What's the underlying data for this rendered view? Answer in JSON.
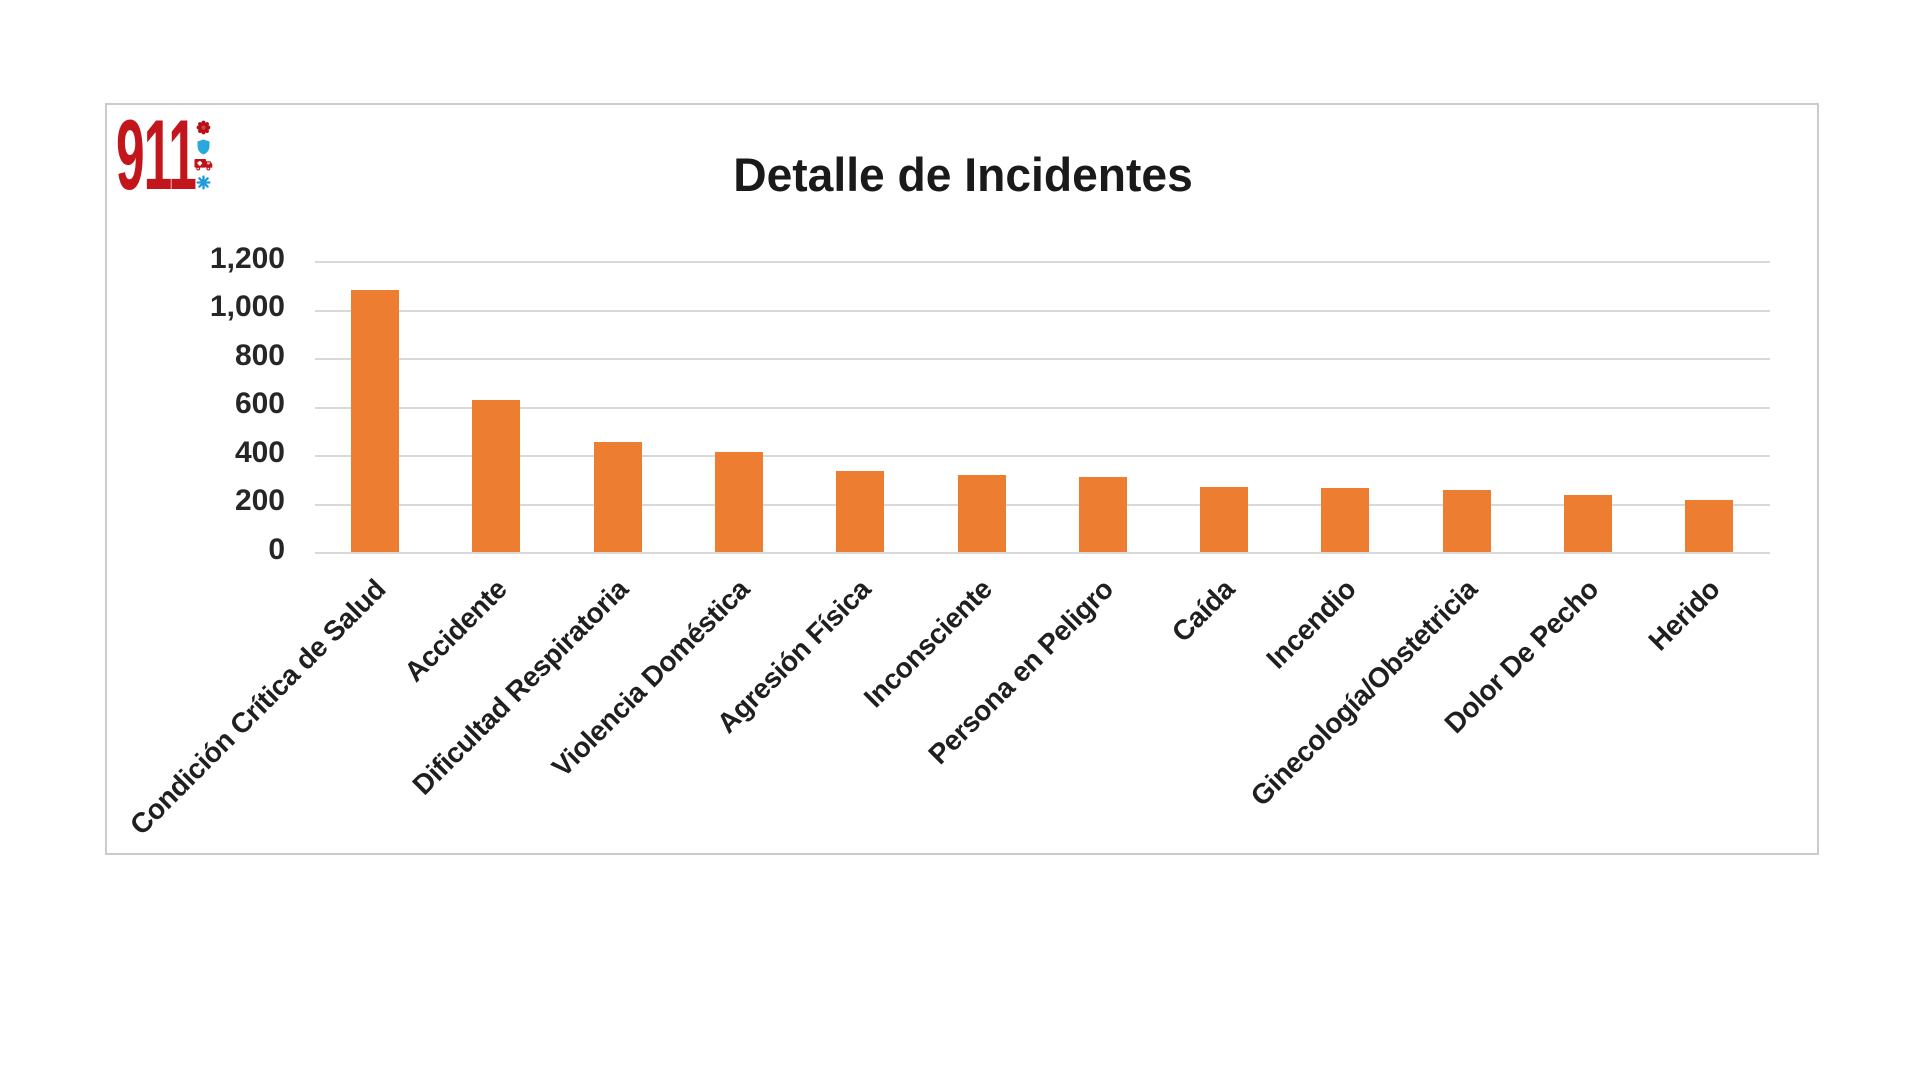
{
  "page": {
    "background": "#ffffff"
  },
  "logo": {
    "text": "911",
    "color": "#c3161c",
    "icons": [
      {
        "name": "badge-icon",
        "color": "#b41117"
      },
      {
        "name": "shield-icon",
        "color": "#29a8df"
      },
      {
        "name": "ambulance-icon",
        "color": "#bf1217"
      },
      {
        "name": "star-of-life-icon",
        "color": "#1e9cd7"
      }
    ]
  },
  "chart_data": {
    "type": "bar",
    "title": "Detalle de Incidentes",
    "categories": [
      "Condición Crítica de Salud",
      "Accidente",
      "Dificultad Respiratoria",
      "Violencia Doméstica",
      "Agresión Física",
      "Inconsciente",
      "Persona en Peligro",
      "Caída",
      "Incendio",
      "Ginecología/Obstetricia",
      "Dolor De Pecho",
      "Herido"
    ],
    "values": [
      1082,
      628,
      452,
      411,
      336,
      318,
      310,
      267,
      266,
      254,
      236,
      215
    ],
    "xlabel": "",
    "ylabel": "",
    "ylim": [
      0,
      1200
    ],
    "ytick_step": 200,
    "ytick_labels": [
      "0",
      "200",
      "400",
      "600",
      "800",
      "1,000",
      "1,200"
    ],
    "bar_color": "#ed7d31",
    "gridline_color": "#d9d9d9",
    "grid": true,
    "legend_position": "none",
    "category_label_rotation": -45
  }
}
